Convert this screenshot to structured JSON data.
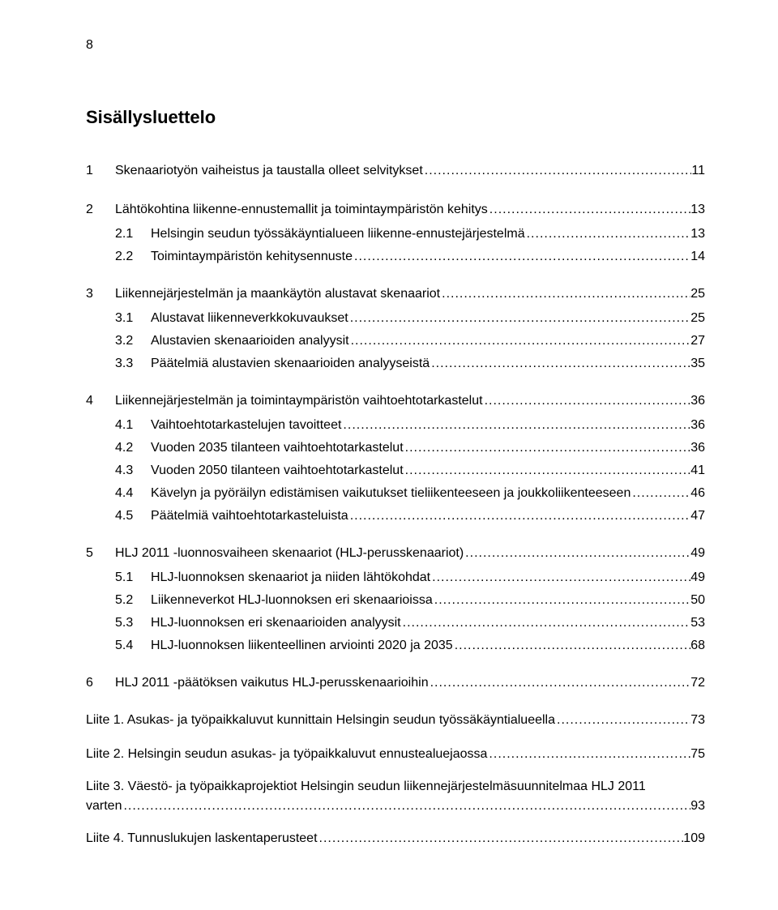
{
  "page_number": "8",
  "title": "Sisällysluettelo",
  "colors": {
    "text": "#000000",
    "background": "#ffffff"
  },
  "typography": {
    "body_fontsize_pt": 12,
    "title_fontsize_pt": 16,
    "title_weight": "bold",
    "font_family": "Arial"
  },
  "toc": [
    {
      "num": "1",
      "title": "Skenaariotyön vaiheistus ja taustalla olleet selvitykset",
      "page": "11"
    },
    {
      "num": "2",
      "title": "Lähtökohtina liikenne-ennustemallit ja toimintaympäristön kehitys",
      "page": "13",
      "children": [
        {
          "num": "2.1",
          "title": "Helsingin seudun työssäkäyntialueen liikenne-ennustejärjestelmä",
          "page": "13"
        },
        {
          "num": "2.2",
          "title": "Toimintaympäristön kehitysennuste",
          "page": "14"
        }
      ]
    },
    {
      "num": "3",
      "title": "Liikennejärjestelmän ja maankäytön alustavat skenaariot",
      "page": "25",
      "children": [
        {
          "num": "3.1",
          "title": "Alustavat liikenneverkkokuvaukset",
          "page": "25"
        },
        {
          "num": "3.2",
          "title": "Alustavien skenaarioiden analyysit",
          "page": "27"
        },
        {
          "num": "3.3",
          "title": "Päätelmiä alustavien skenaarioiden analyyseistä",
          "page": "35"
        }
      ]
    },
    {
      "num": "4",
      "title": "Liikennejärjestelmän ja toimintaympäristön vaihtoehtotarkastelut",
      "page": "36",
      "children": [
        {
          "num": "4.1",
          "title": "Vaihtoehtotarkastelujen tavoitteet",
          "page": "36"
        },
        {
          "num": "4.2",
          "title": "Vuoden 2035 tilanteen vaihtoehtotarkastelut",
          "page": "36"
        },
        {
          "num": "4.3",
          "title": "Vuoden 2050 tilanteen vaihtoehtotarkastelut",
          "page": "41"
        },
        {
          "num": "4.4",
          "title": "Kävelyn ja pyöräilyn edistämisen vaikutukset tieliikenteeseen ja joukkoliikenteeseen",
          "page": "46"
        },
        {
          "num": "4.5",
          "title": "Päätelmiä vaihtoehtotarkasteluista",
          "page": "47"
        }
      ]
    },
    {
      "num": "5",
      "title": "HLJ 2011 -luonnosvaiheen skenaariot (HLJ-perusskenaariot)",
      "page": "49",
      "children": [
        {
          "num": "5.1",
          "title": "HLJ-luonnoksen skenaariot ja niiden lähtökohdat",
          "page": "49"
        },
        {
          "num": "5.2",
          "title": "Liikenneverkot HLJ-luonnoksen eri skenaarioissa",
          "page": "50"
        },
        {
          "num": "5.3",
          "title": "HLJ-luonnoksen eri skenaarioiden analyysit",
          "page": "53"
        },
        {
          "num": "5.4",
          "title": "HLJ-luonnoksen liikenteellinen arviointi 2020 ja 2035",
          "page": "68"
        }
      ]
    },
    {
      "num": "6",
      "title": "HLJ 2011 -päätöksen vaikutus HLJ-perusskenaarioihin",
      "page": "72"
    }
  ],
  "appendices": [
    {
      "title": "Liite 1. Asukas- ja työpaikkaluvut kunnittain Helsingin seudun työssäkäyntialueella",
      "page": "73"
    },
    {
      "title": "Liite 2. Helsingin seudun asukas- ja työpaikkaluvut ennustealuejaossa",
      "page": "75"
    },
    {
      "title_line1": "Liite 3. Väestö- ja työpaikkaprojektiot Helsingin seudun liikennejärjestelmäsuunnitelmaa HLJ 2011",
      "title_line2": "varten",
      "page": "93"
    },
    {
      "title": "Liite 4. Tunnuslukujen laskentaperusteet",
      "page": "109"
    }
  ]
}
